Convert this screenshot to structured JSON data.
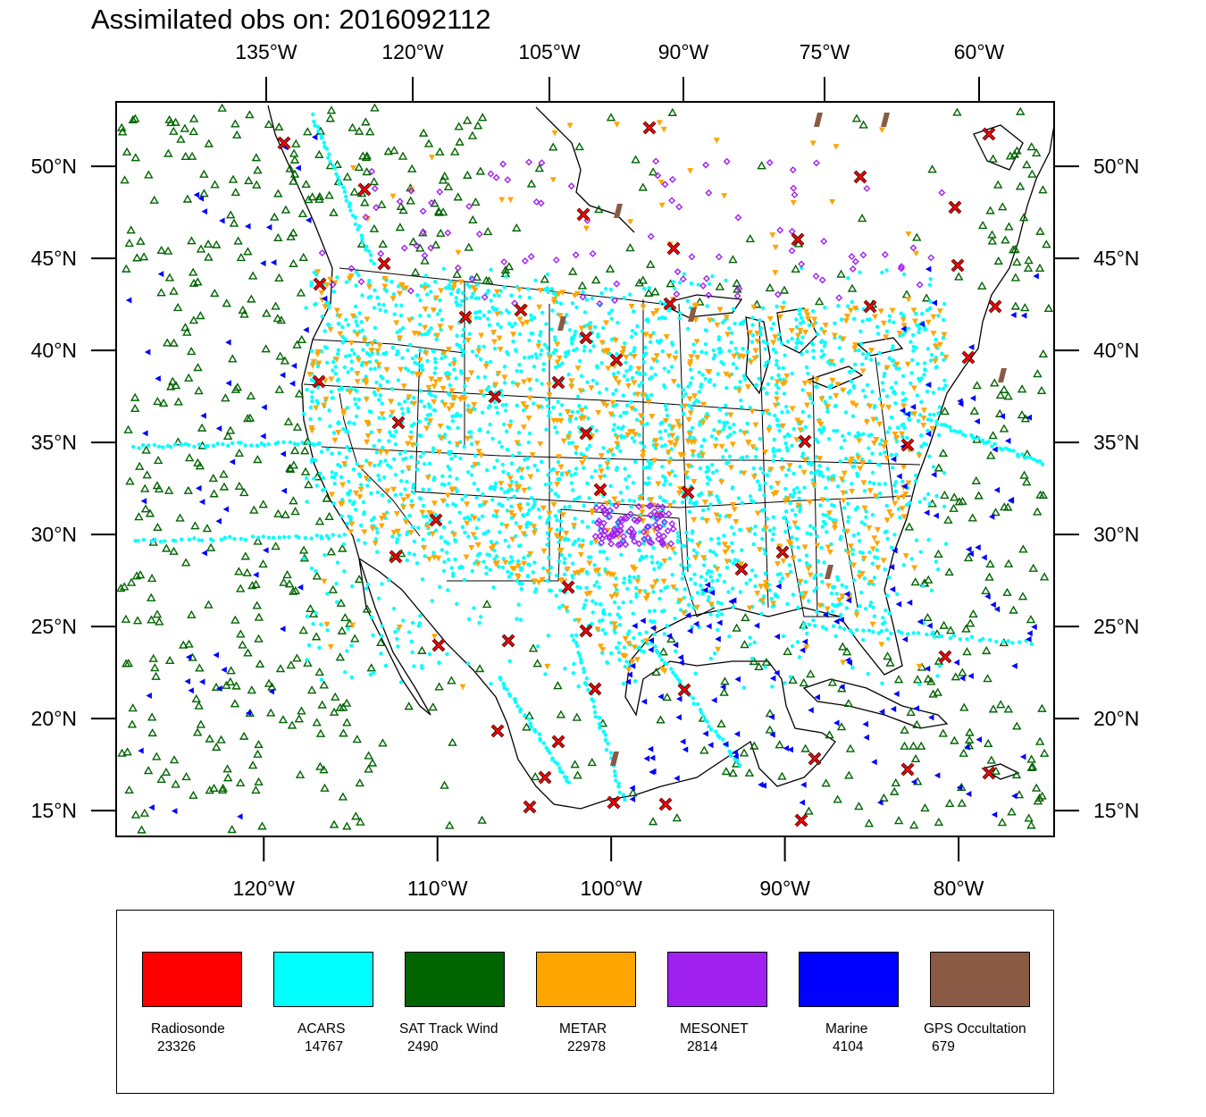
{
  "title": "Assimilated obs on: 2016092112",
  "map": {
    "top_lon_labels": [
      "135°W",
      "120°W",
      "105°W",
      "90°W",
      "75°W",
      "60°W"
    ],
    "bottom_lon_labels": [
      "120°W",
      "110°W",
      "100°W",
      "90°W",
      "80°W"
    ],
    "lat_labels": [
      "50°N",
      "45°N",
      "40°N",
      "35°N",
      "30°N",
      "25°N",
      "20°N",
      "15°N"
    ],
    "lat_values": [
      50,
      45,
      40,
      35,
      30,
      25,
      20,
      15
    ],
    "bottom_lon_values": [
      -120,
      -110,
      -100,
      -90,
      -80
    ],
    "extent": {
      "lon_min": -128.5,
      "lon_max": -74.5,
      "lat_min": 13.6,
      "lat_max": 53.5
    }
  },
  "legend": [
    {
      "name": "Radiosonde",
      "count": "23326",
      "color": "#ff0000"
    },
    {
      "name": "ACARS",
      "count": "14767",
      "color": "#00ffff"
    },
    {
      "name": "SAT Track Wind",
      "count": "2490",
      "color": "#006400"
    },
    {
      "name": "METAR",
      "count": "22978",
      "color": "#ffa500"
    },
    {
      "name": "MESONET",
      "count": "2814",
      "color": "#a020f0"
    },
    {
      "name": "Marine",
      "count": "4104",
      "color": "#0000ff"
    },
    {
      "name": "GPS Occultation",
      "count": "679",
      "color": "#8b5a44"
    }
  ],
  "marker_colors": {
    "radiosonde": "#ff0000",
    "acars": "#00ffff",
    "sat_track_wind": "#006400",
    "metar": "#ffa500",
    "mesonet": "#a020f0",
    "marine": "#0000ff",
    "gps": "#8b5a44",
    "outline": "#000000"
  }
}
